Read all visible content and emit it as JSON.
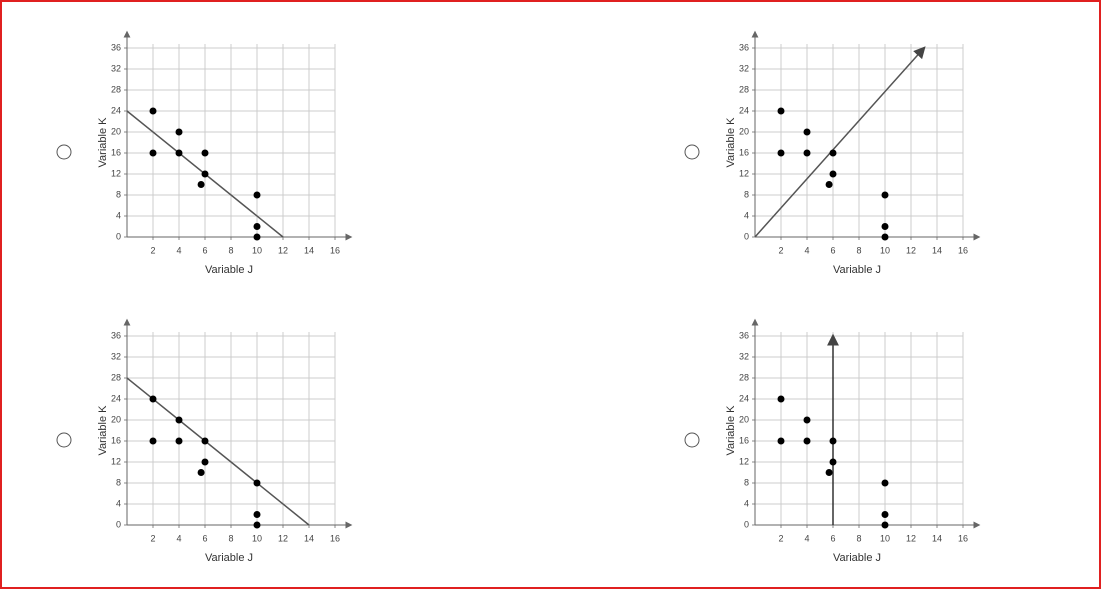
{
  "chart_data": [
    {
      "type": "scatter",
      "x_label": "Variable J",
      "y_label": "Variable K",
      "x": [
        2,
        2,
        4,
        4,
        6,
        6,
        5.7,
        10,
        10,
        10
      ],
      "y": [
        24,
        16,
        20,
        16,
        16,
        12,
        10,
        8,
        2,
        0
      ],
      "color": "#000000",
      "line": {
        "x": [
          0,
          12
        ],
        "y": [
          24,
          0
        ],
        "color": "#555555",
        "arrow": false
      },
      "xlim": [
        0,
        16
      ],
      "ylim": [
        0,
        36
      ],
      "xticks": [
        2,
        4,
        6,
        8,
        10,
        12,
        14,
        16
      ],
      "yticks": [
        0,
        4,
        8,
        12,
        16,
        20,
        24,
        28,
        32,
        36
      ],
      "grid": true
    },
    {
      "type": "scatter",
      "x_label": "Variable J",
      "y_label": "Variable K",
      "x": [
        2,
        2,
        4,
        4,
        6,
        6,
        5.7,
        10,
        10,
        10
      ],
      "y": [
        24,
        16,
        20,
        16,
        16,
        12,
        10,
        8,
        2,
        0
      ],
      "color": "#000000",
      "line": {
        "x": [
          0,
          13
        ],
        "y": [
          0,
          36
        ],
        "color": "#555555",
        "arrow": true
      },
      "xlim": [
        0,
        16
      ],
      "ylim": [
        0,
        36
      ],
      "xticks": [
        2,
        4,
        6,
        8,
        10,
        12,
        14,
        16
      ],
      "yticks": [
        0,
        4,
        8,
        12,
        16,
        20,
        24,
        28,
        32,
        36
      ],
      "grid": true
    },
    {
      "type": "scatter",
      "x_label": "Variable J",
      "y_label": "Variable K",
      "x": [
        2,
        2,
        4,
        4,
        6,
        6,
        5.7,
        10,
        10,
        10
      ],
      "y": [
        24,
        16,
        20,
        16,
        16,
        12,
        10,
        8,
        2,
        0
      ],
      "color": "#000000",
      "line": {
        "x": [
          0,
          14
        ],
        "y": [
          28,
          0
        ],
        "color": "#555555",
        "arrow": false
      },
      "xlim": [
        0,
        16
      ],
      "ylim": [
        0,
        36
      ],
      "xticks": [
        2,
        4,
        6,
        8,
        10,
        12,
        14,
        16
      ],
      "yticks": [
        0,
        4,
        8,
        12,
        16,
        20,
        24,
        28,
        32,
        36
      ],
      "grid": true
    },
    {
      "type": "scatter",
      "x_label": "Variable J",
      "y_label": "Variable K",
      "x": [
        2,
        2,
        4,
        4,
        6,
        6,
        5.7,
        10,
        10,
        10
      ],
      "y": [
        24,
        16,
        20,
        16,
        16,
        12,
        10,
        8,
        2,
        0
      ],
      "color": "#000000",
      "line": {
        "x": [
          6,
          6
        ],
        "y": [
          0,
          36
        ],
        "color": "#333333",
        "arrow": true
      },
      "xlim": [
        0,
        16
      ],
      "ylim": [
        0,
        36
      ],
      "xticks": [
        2,
        4,
        6,
        8,
        10,
        12,
        14,
        16
      ],
      "yticks": [
        0,
        4,
        8,
        12,
        16,
        20,
        24,
        28,
        32,
        36
      ],
      "grid": true
    }
  ]
}
